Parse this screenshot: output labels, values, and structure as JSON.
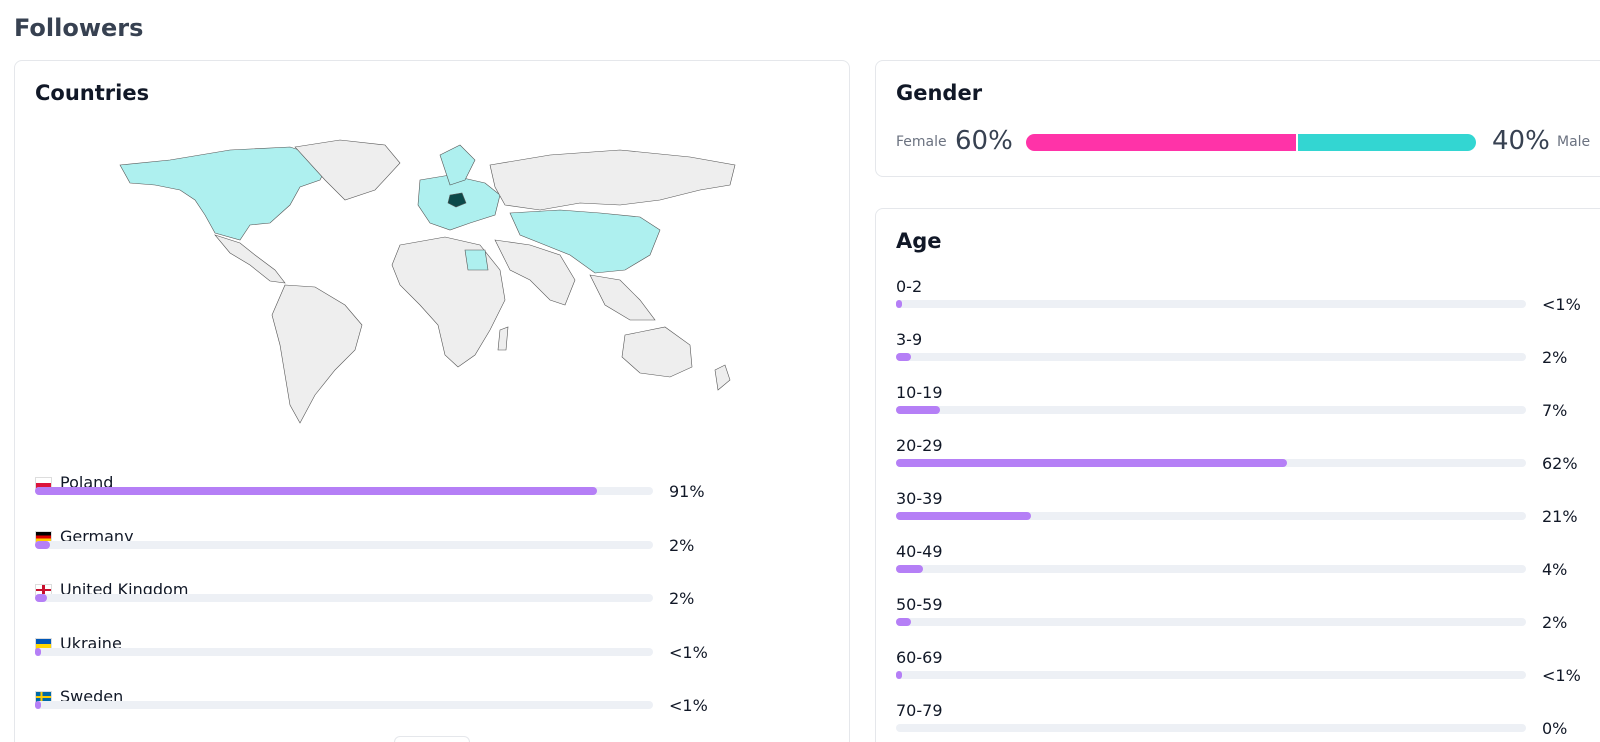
{
  "page": {
    "title": "Followers"
  },
  "countries": {
    "title": "Countries",
    "colors": {
      "highlight": "#0b4a4a",
      "active": "#aef0ef",
      "inactive": "#eeeeee",
      "border": "#555555"
    },
    "items": [
      {
        "name": "Poland",
        "flag": "pl-flag-icon",
        "value_text": "91%",
        "fraction": 0.91
      },
      {
        "name": "Germany",
        "flag": "de-flag-icon",
        "value_text": "2%",
        "fraction": 0.024
      },
      {
        "name": "United Kingdom",
        "flag": "gb-flag-icon",
        "value_text": "2%",
        "fraction": 0.02
      },
      {
        "name": "Ukraine",
        "flag": "ua-flag-icon",
        "value_text": "<1%",
        "fraction": 0.006
      },
      {
        "name": "Sweden",
        "flag": "se-flag-icon",
        "value_text": "<1%",
        "fraction": 0.006
      }
    ]
  },
  "gender": {
    "title": "Gender",
    "female_label": "Female",
    "female_pct": "60%",
    "male_label": "Male",
    "male_pct": "40%",
    "female_fraction": 0.6,
    "colors": {
      "female": "#ff33a8",
      "male": "#33d6d2"
    }
  },
  "age": {
    "title": "Age",
    "accent": "#b57ff6",
    "items": [
      {
        "label": "0-2",
        "value_text": "<1%",
        "fraction": 0.008
      },
      {
        "label": "3-9",
        "value_text": "2%",
        "fraction": 0.024
      },
      {
        "label": "10-19",
        "value_text": "7%",
        "fraction": 0.07
      },
      {
        "label": "20-29",
        "value_text": "62%",
        "fraction": 0.62
      },
      {
        "label": "30-39",
        "value_text": "21%",
        "fraction": 0.215
      },
      {
        "label": "40-49",
        "value_text": "4%",
        "fraction": 0.043
      },
      {
        "label": "50-59",
        "value_text": "2%",
        "fraction": 0.024
      },
      {
        "label": "60-69",
        "value_text": "<1%",
        "fraction": 0.008
      },
      {
        "label": "70-79",
        "value_text": "0%",
        "fraction": 0
      }
    ]
  }
}
